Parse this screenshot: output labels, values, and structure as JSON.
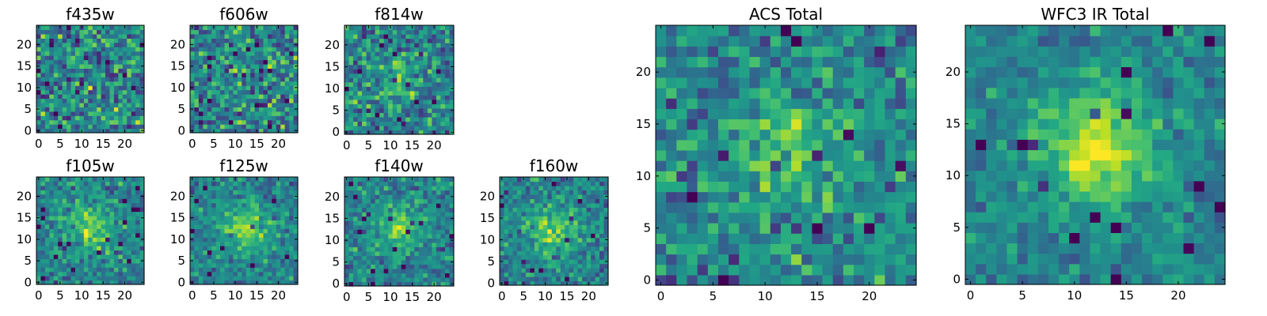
{
  "chart_data": [
    {
      "type": "heatmap",
      "title": "f435w",
      "xticks": [
        "0",
        "5",
        "10",
        "15",
        "20"
      ],
      "yticks": [
        "0",
        "5",
        "10",
        "15",
        "20"
      ],
      "xlim": [
        0,
        25
      ],
      "ylim": [
        0,
        25
      ],
      "grid_size": 25,
      "colormap": "viridis",
      "blob_strength": 0.0,
      "noise_level": 0.95,
      "seed": 11
    },
    {
      "type": "heatmap",
      "title": "f606w",
      "xticks": [
        "0",
        "5",
        "10",
        "15",
        "20"
      ],
      "yticks": [
        "0",
        "5",
        "10",
        "15",
        "20"
      ],
      "xlim": [
        0,
        25
      ],
      "ylim": [
        0,
        25
      ],
      "grid_size": 25,
      "colormap": "viridis",
      "blob_strength": 0.1,
      "noise_level": 0.9,
      "seed": 23
    },
    {
      "type": "heatmap",
      "title": "f814w",
      "xticks": [
        "0",
        "5",
        "10",
        "15",
        "20"
      ],
      "yticks": [
        "0",
        "5",
        "10",
        "15",
        "20"
      ],
      "xlim": [
        0,
        25
      ],
      "ylim": [
        0,
        25
      ],
      "grid_size": 25,
      "colormap": "viridis",
      "blob_strength": 0.35,
      "noise_level": 0.8,
      "seed": 37
    },
    {
      "type": "heatmap",
      "title": "f105w",
      "xticks": [
        "0",
        "5",
        "10",
        "15",
        "20"
      ],
      "yticks": [
        "0",
        "5",
        "10",
        "15",
        "20"
      ],
      "xlim": [
        0,
        25
      ],
      "ylim": [
        0,
        25
      ],
      "grid_size": 25,
      "colormap": "viridis",
      "blob_strength": 0.55,
      "noise_level": 0.6,
      "seed": 41
    },
    {
      "type": "heatmap",
      "title": "f125w",
      "xticks": [
        "0",
        "5",
        "10",
        "15",
        "20"
      ],
      "yticks": [
        "0",
        "5",
        "10",
        "15",
        "20"
      ],
      "xlim": [
        0,
        25
      ],
      "ylim": [
        0,
        25
      ],
      "grid_size": 25,
      "colormap": "viridis",
      "blob_strength": 0.6,
      "noise_level": 0.55,
      "seed": 53
    },
    {
      "type": "heatmap",
      "title": "f140w",
      "xticks": [
        "0",
        "5",
        "10",
        "15",
        "20"
      ],
      "yticks": [
        "0",
        "5",
        "10",
        "15",
        "20"
      ],
      "xlim": [
        0,
        25
      ],
      "ylim": [
        0,
        25
      ],
      "grid_size": 25,
      "colormap": "viridis",
      "blob_strength": 0.55,
      "noise_level": 0.6,
      "seed": 67
    },
    {
      "type": "heatmap",
      "title": "f160w",
      "xticks": [
        "0",
        "5",
        "10",
        "15",
        "20"
      ],
      "yticks": [
        "0",
        "5",
        "10",
        "15",
        "20"
      ],
      "xlim": [
        0,
        25
      ],
      "ylim": [
        0,
        25
      ],
      "grid_size": 25,
      "colormap": "viridis",
      "blob_strength": 0.55,
      "noise_level": 0.6,
      "seed": 79
    },
    {
      "type": "heatmap",
      "title": "ACS Total",
      "xticks": [
        "0",
        "5",
        "10",
        "15",
        "20"
      ],
      "yticks": [
        "0",
        "5",
        "10",
        "15",
        "20"
      ],
      "xlim": [
        0,
        25
      ],
      "ylim": [
        0,
        25
      ],
      "grid_size": 25,
      "colormap": "viridis",
      "blob_strength": 0.45,
      "noise_level": 0.7,
      "seed": 97
    },
    {
      "type": "heatmap",
      "title": "WFC3 IR Total",
      "xticks": [
        "0",
        "5",
        "10",
        "15",
        "20"
      ],
      "yticks": [
        "0",
        "5",
        "10",
        "15",
        "20"
      ],
      "xlim": [
        0,
        25
      ],
      "ylim": [
        0,
        25
      ],
      "grid_size": 25,
      "colormap": "viridis",
      "blob_strength": 0.8,
      "noise_level": 0.45,
      "seed": 131
    }
  ]
}
